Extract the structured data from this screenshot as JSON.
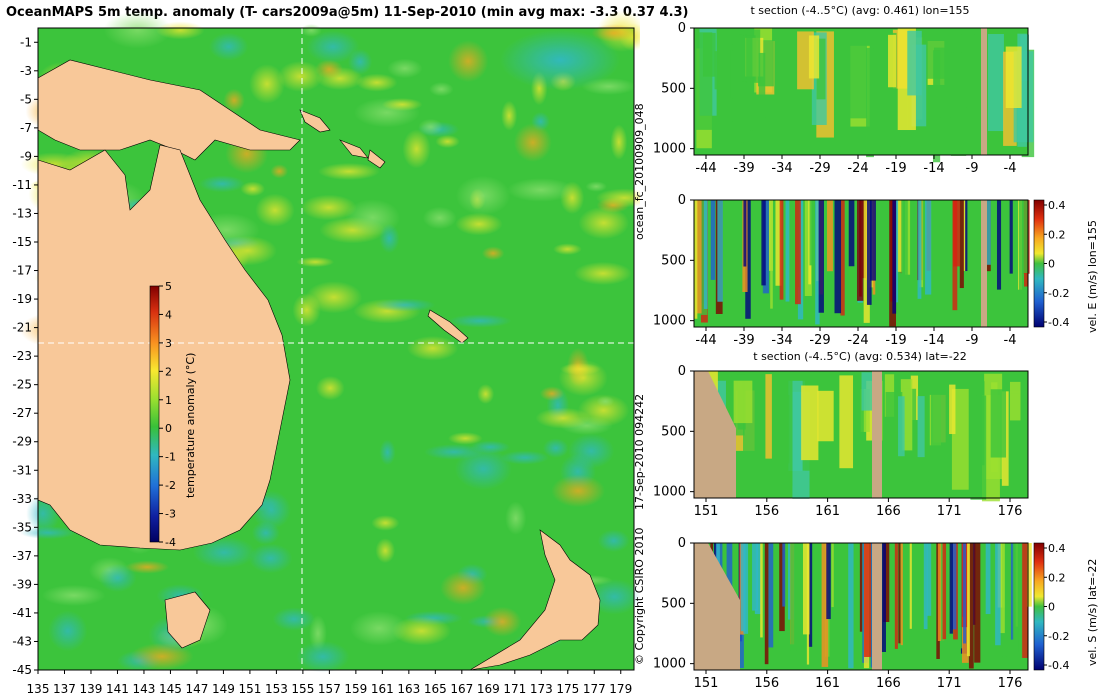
{
  "header": {
    "title": "OceanMAPS 5m temp. anomaly (T- cars2009a@5m) 11-Sep-2010 (min avg max: -3.3 0.37 4.3)",
    "run_id": "ocean_fc_20100909_048",
    "generated": "17-Sep-2010 094242",
    "copyright": "© Copyright CSIRO 2010"
  },
  "colors": {
    "land": "#f8c899",
    "land_section": "#c8a884",
    "ocean_mid": "#3cc43c",
    "dash": "#ffffff"
  },
  "map": {
    "colorbar_label": "temperature anomaly (°C)",
    "colorbar_ticks": [
      "5",
      "4",
      "3",
      "2",
      "1",
      "0",
      "-1",
      "-2",
      "-3",
      "-4"
    ]
  },
  "chart_data": [
    {
      "type": "heatmap",
      "title": "OceanMAPS 5m temp. anomaly (T- cars2009a@5m) 11-Sep-2010 (min avg max: -3.3 0.37 4.3)",
      "x": {
        "min": 135,
        "max": 180,
        "ticks": [
          135,
          137,
          139,
          141,
          143,
          145,
          147,
          149,
          151,
          153,
          155,
          157,
          159,
          161,
          163,
          165,
          167,
          169,
          171,
          173,
          175,
          177,
          179
        ]
      },
      "y": {
        "min": -45,
        "max": 0,
        "ticks": [
          -1,
          -3,
          -5,
          -7,
          -9,
          -11,
          -13,
          -15,
          -17,
          -19,
          -21,
          -23,
          -25,
          -27,
          -29,
          -31,
          -33,
          -35,
          -37,
          -39,
          -41,
          -43,
          -45
        ]
      },
      "section_lines": {
        "lon": 155,
        "lat": -22
      },
      "colorbar": {
        "label": "temperature anomaly (°C)",
        "min": -4,
        "max": 5,
        "ticks": [
          5,
          4,
          3,
          2,
          1,
          0,
          -1,
          -2,
          -3,
          -4
        ]
      },
      "stats": {
        "min": -3.3,
        "avg": 0.37,
        "max": 4.3
      }
    },
    {
      "type": "heatmap",
      "title": "t section (-4..5°C) (avg: 0.461) lon=155",
      "x_ticks": [
        "-44",
        "-39",
        "-34",
        "-29",
        "-24",
        "-19",
        "-14",
        "-9",
        "-4"
      ],
      "y_ticks": [
        "0",
        "500",
        "1000"
      ],
      "avg": 0.461
    },
    {
      "type": "heatmap",
      "title": "",
      "colorbar_label": "vel. E (m/s) lon=155",
      "x_ticks": [
        "-44",
        "-39",
        "-34",
        "-29",
        "-24",
        "-19",
        "-14",
        "-9",
        "-4"
      ],
      "y_ticks": [
        "0",
        "500",
        "1000"
      ],
      "colorbar_ticks": [
        "0.4",
        "0.2",
        "0",
        "-0.2",
        "-0.4"
      ]
    },
    {
      "type": "heatmap",
      "title": "t section (-4..5°C) (avg: 0.534) lat=-22",
      "x_ticks": [
        "151",
        "156",
        "161",
        "166",
        "171",
        "176"
      ],
      "y_ticks": [
        "0",
        "500",
        "1000"
      ],
      "avg": 0.534
    },
    {
      "type": "heatmap",
      "title": "",
      "colorbar_label": "vel. S (m/s) lat=-22",
      "x_ticks": [
        "151",
        "156",
        "161",
        "166",
        "171",
        "176"
      ],
      "y_ticks": [
        "0",
        "500",
        "1000"
      ],
      "colorbar_ticks": [
        "0.4",
        "0.2",
        "0",
        "-0.2",
        "-0.4"
      ]
    }
  ]
}
